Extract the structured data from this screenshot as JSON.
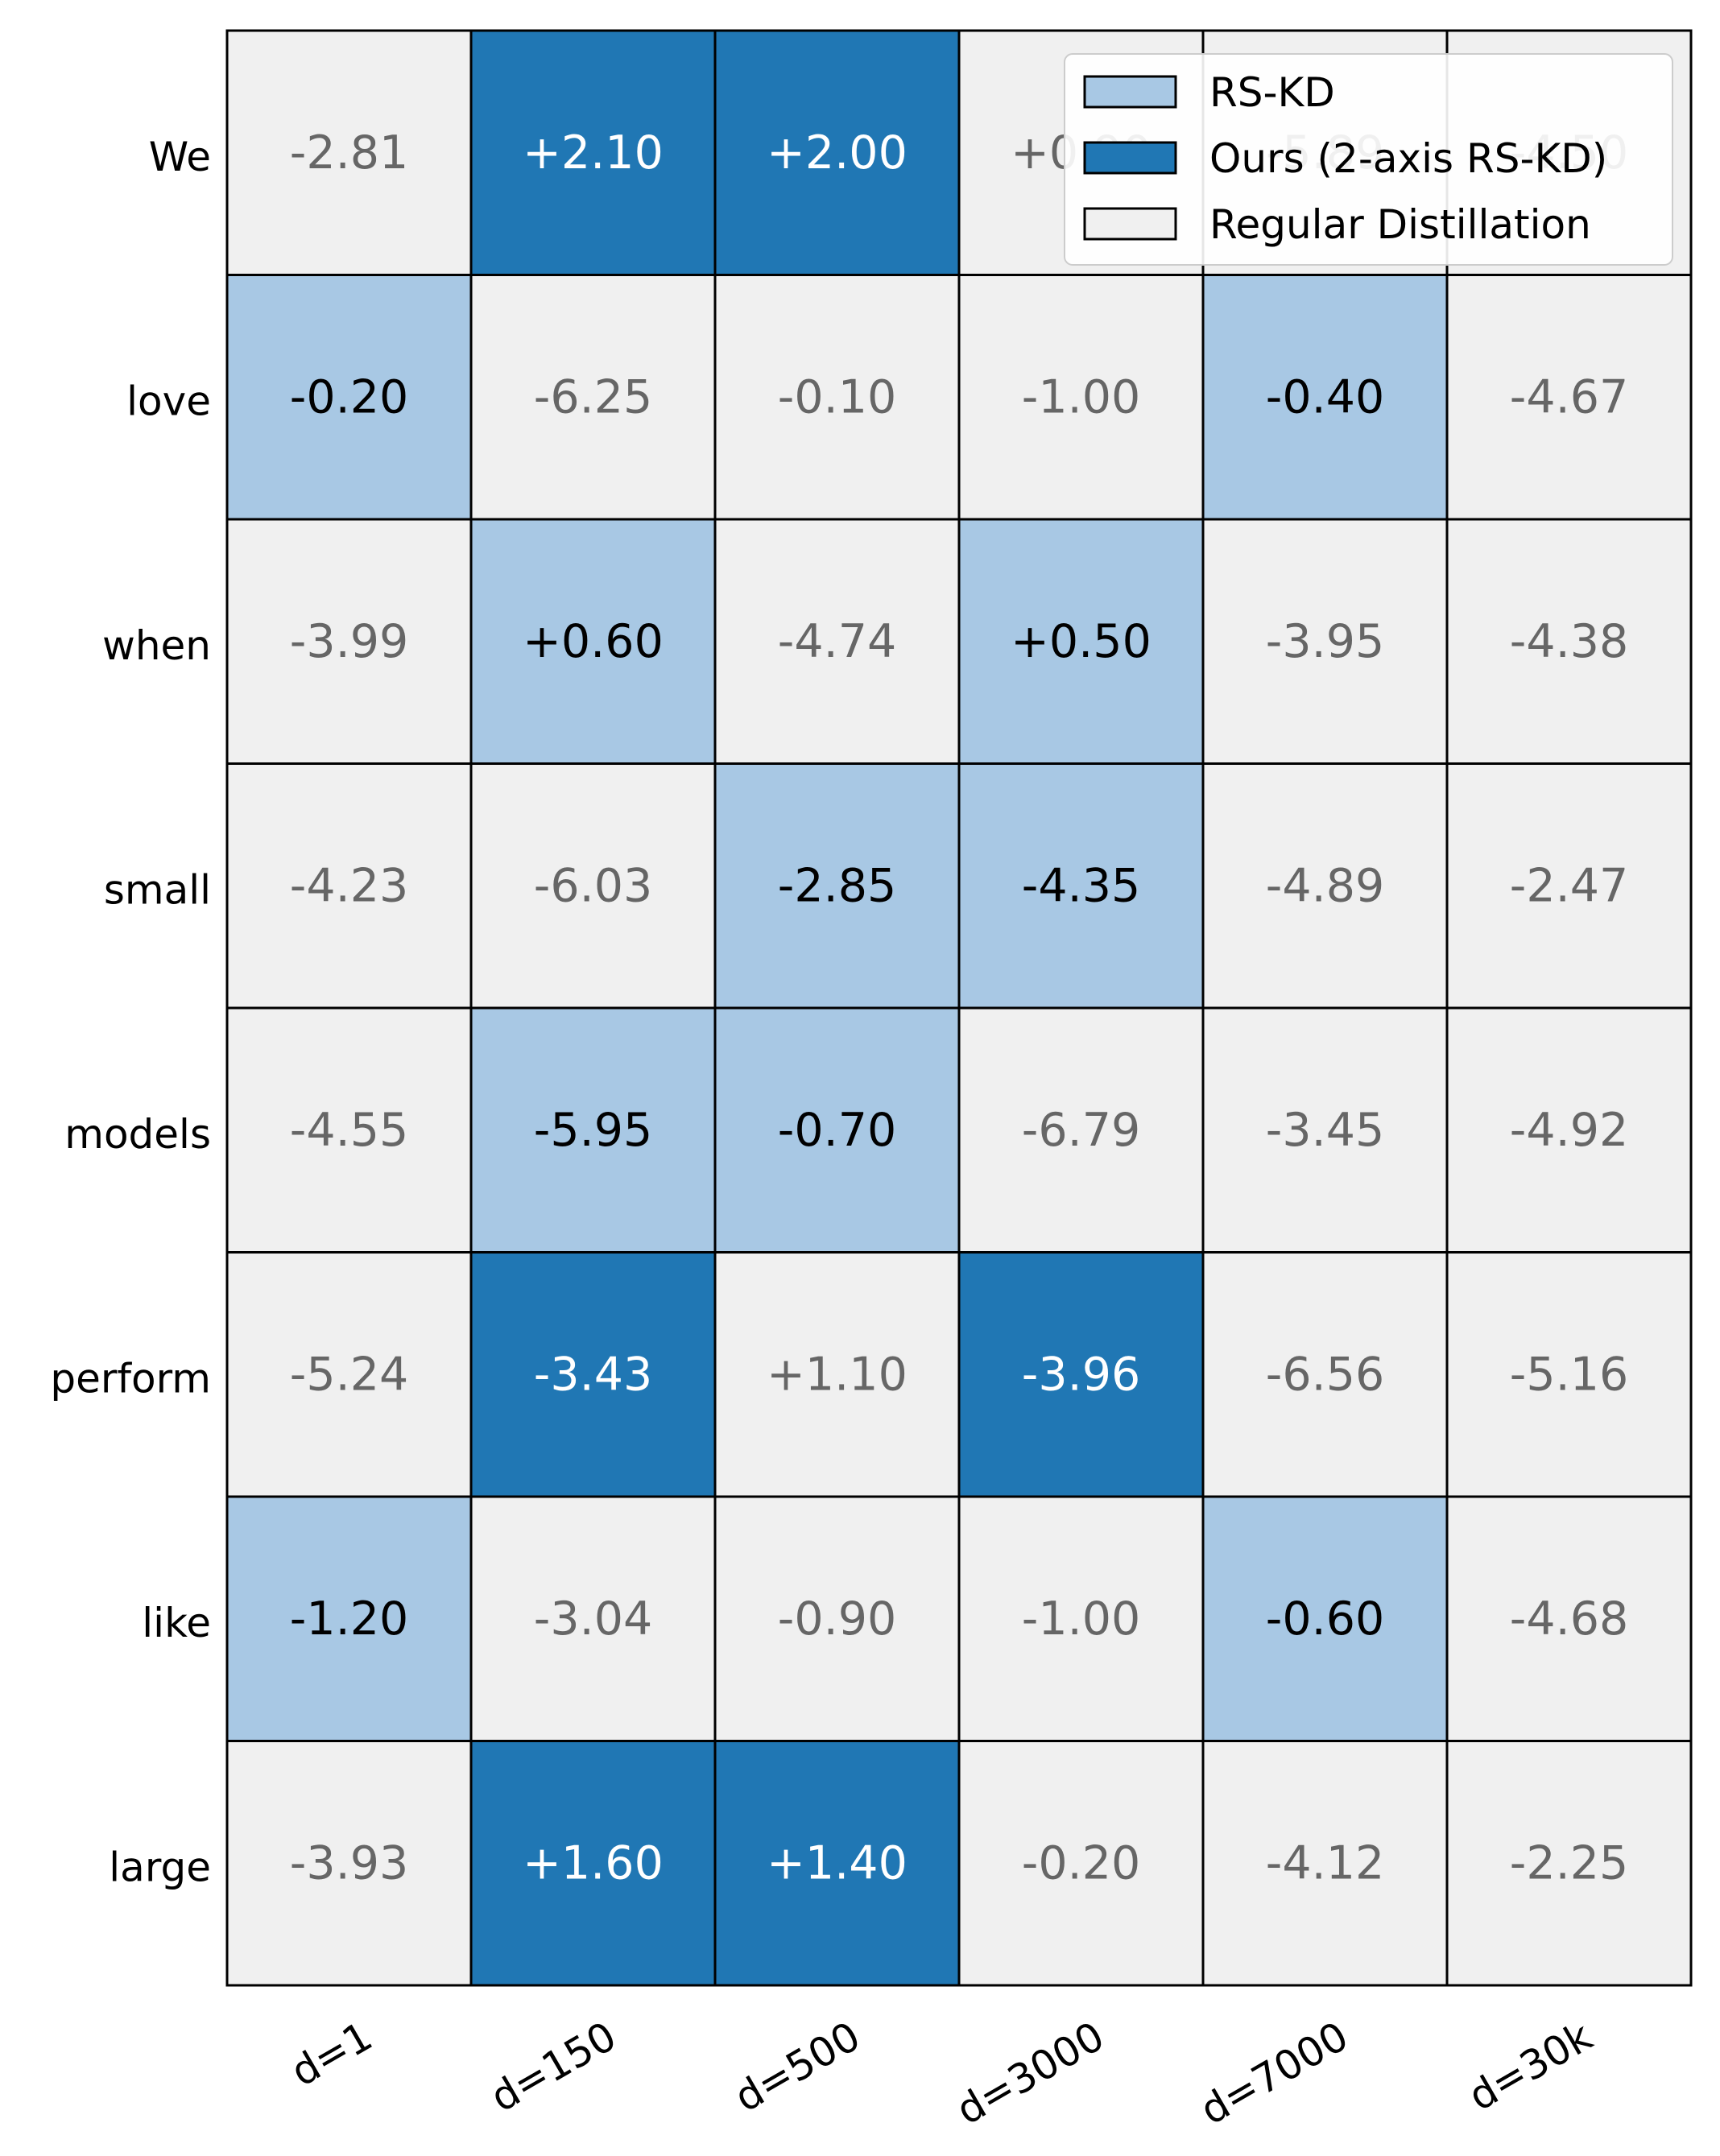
{
  "chart_data": {
    "type": "heatmap",
    "rows": [
      "We",
      "love",
      "when",
      "small",
      "models",
      "perform",
      "like",
      "large"
    ],
    "columns": [
      "d=1",
      "d=150",
      "d=500",
      "d=3000",
      "d=7000",
      "d=30k"
    ],
    "values": [
      [
        "-2.81",
        "+2.10",
        "+2.00",
        "+0.90",
        "-5.89",
        "-4.50"
      ],
      [
        "-0.20",
        "-6.25",
        "-0.10",
        "-1.00",
        "-0.40",
        "-4.67"
      ],
      [
        "-3.99",
        "+0.60",
        "-4.74",
        "+0.50",
        "-3.95",
        "-4.38"
      ],
      [
        "-4.23",
        "-6.03",
        "-2.85",
        "-4.35",
        "-4.89",
        "-2.47"
      ],
      [
        "-4.55",
        "-5.95",
        "-0.70",
        "-6.79",
        "-3.45",
        "-4.92"
      ],
      [
        "-5.24",
        "-3.43",
        "+1.10",
        "-3.96",
        "-6.56",
        "-5.16"
      ],
      [
        "-1.20",
        "-3.04",
        "-0.90",
        "-1.00",
        "-0.60",
        "-4.68"
      ],
      [
        "-3.93",
        "+1.60",
        "+1.40",
        "-0.20",
        "-4.12",
        "-2.25"
      ]
    ],
    "categories_grid": [
      [
        0,
        2,
        2,
        0,
        0,
        0
      ],
      [
        1,
        0,
        0,
        0,
        1,
        0
      ],
      [
        0,
        1,
        0,
        1,
        0,
        0
      ],
      [
        0,
        0,
        1,
        1,
        0,
        0
      ],
      [
        0,
        1,
        1,
        0,
        0,
        0
      ],
      [
        0,
        2,
        0,
        2,
        0,
        0
      ],
      [
        1,
        0,
        0,
        0,
        1,
        0
      ],
      [
        0,
        2,
        2,
        0,
        0,
        0
      ]
    ],
    "legend": {
      "placement": "top-right",
      "entries": [
        {
          "label": "RS-KD",
          "color": "#a8c8e4"
        },
        {
          "label": "Ours (2-axis RS-KD)",
          "color": "#2077b4"
        },
        {
          "label": "Regular Distillation",
          "color": "#f0f0f0"
        }
      ]
    },
    "category_colors": [
      "#f0f0f0",
      "#a8c8e4",
      "#2077b4"
    ],
    "text_colors": [
      "#666666",
      "#000000",
      "#ffffff"
    ],
    "grid": false
  }
}
